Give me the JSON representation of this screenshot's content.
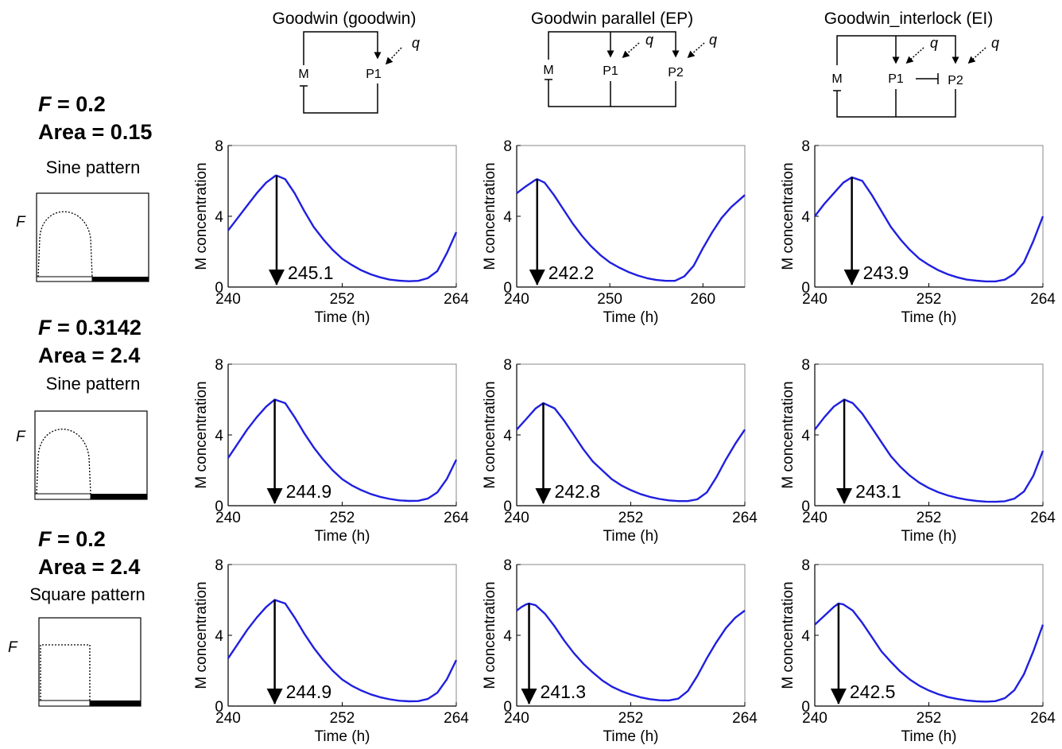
{
  "models": [
    {
      "title": "Goodwin (goodwin)",
      "nodes": [
        "M",
        "P1"
      ],
      "q": "q"
    },
    {
      "title": "Goodwin parallel (EP)",
      "nodes": [
        "M",
        "P1",
        "P2"
      ],
      "q": "q"
    },
    {
      "title": "Goodwin_interlock (EI)",
      "nodes": [
        "M",
        "P1",
        "P2"
      ],
      "q": "q"
    }
  ],
  "conditions": [
    {
      "f_label": "F",
      "f_eq": " = 0.2",
      "area": "Area = 0.15",
      "pattern": "Sine pattern",
      "input_shape": "sine"
    },
    {
      "f_label": "F",
      "f_eq": " = 0.3142",
      "area": "Area = 2.4",
      "pattern": "Sine pattern",
      "input_shape": "sine"
    },
    {
      "f_label": "F",
      "f_eq": " = 0.2",
      "area": "Area = 2.4",
      "pattern": "Square pattern",
      "input_shape": "square"
    }
  ],
  "input_axis_label": "F",
  "colors": {
    "curve": "#1f1fe0",
    "axis": "#000000",
    "frame": "#888888"
  },
  "chart_data": [
    {
      "type": "line",
      "row": 0,
      "col": 0,
      "xlim": [
        240,
        264
      ],
      "ylim": [
        0,
        8
      ],
      "xticks": [
        "240",
        "252",
        "264"
      ],
      "yticks": [
        "0",
        "4",
        "8"
      ],
      "xlabel": "Time (h)",
      "ylabel": "M concentration",
      "peak_label": "245.1",
      "peak": {
        "x": 245.1,
        "y": 6.3
      },
      "x": [
        240,
        241,
        242,
        243,
        244,
        245,
        245.1,
        246,
        247,
        248,
        249,
        250,
        251,
        252,
        253,
        254,
        255,
        256,
        257,
        258,
        259,
        260,
        261,
        262,
        263,
        264
      ],
      "y": [
        3.2,
        3.9,
        4.6,
        5.3,
        5.9,
        6.3,
        6.3,
        6.1,
        5.3,
        4.3,
        3.4,
        2.7,
        2.1,
        1.6,
        1.25,
        0.95,
        0.72,
        0.55,
        0.42,
        0.36,
        0.33,
        0.35,
        0.5,
        0.9,
        1.9,
        3.1
      ]
    },
    {
      "type": "line",
      "row": 0,
      "col": 1,
      "xlim": [
        240,
        264.5
      ],
      "ylim": [
        0,
        8
      ],
      "xticks": [
        "240",
        "250",
        "260"
      ],
      "yticks": [
        "0",
        "4",
        "8"
      ],
      "xlabel": "Time (h)",
      "ylabel": "M concentration",
      "peak_label": "242.2",
      "peak": {
        "x": 242.2,
        "y": 6.1
      },
      "x": [
        240,
        241,
        242,
        242.2,
        243,
        244,
        245,
        246,
        247,
        248,
        249,
        250,
        251,
        252,
        253,
        254,
        255,
        256,
        257,
        258,
        259,
        260,
        261,
        262,
        263,
        264.5
      ],
      "y": [
        5.3,
        5.7,
        6.05,
        6.1,
        5.9,
        5.2,
        4.4,
        3.6,
        2.9,
        2.3,
        1.8,
        1.4,
        1.1,
        0.85,
        0.65,
        0.5,
        0.4,
        0.35,
        0.35,
        0.6,
        1.2,
        2.2,
        3.1,
        3.9,
        4.5,
        5.2
      ]
    },
    {
      "type": "line",
      "row": 0,
      "col": 2,
      "xlim": [
        240,
        264
      ],
      "ylim": [
        0,
        8
      ],
      "xticks": [
        "240",
        "252",
        "264"
      ],
      "yticks": [
        "0",
        "4",
        "8"
      ],
      "xlabel": "Time (h)",
      "ylabel": "M concentration",
      "peak_label": "243.9",
      "peak": {
        "x": 243.9,
        "y": 6.2
      },
      "x": [
        240,
        241,
        242,
        243,
        243.9,
        245,
        246,
        247,
        248,
        249,
        250,
        251,
        252,
        253,
        254,
        255,
        256,
        257,
        258,
        259,
        260,
        261,
        262,
        263,
        264
      ],
      "y": [
        4.0,
        4.7,
        5.3,
        5.9,
        6.2,
        6.0,
        5.2,
        4.3,
        3.4,
        2.7,
        2.1,
        1.6,
        1.25,
        0.95,
        0.72,
        0.55,
        0.42,
        0.36,
        0.32,
        0.32,
        0.42,
        0.75,
        1.4,
        2.6,
        4.0
      ]
    },
    {
      "type": "line",
      "row": 1,
      "col": 0,
      "xlim": [
        240,
        264
      ],
      "ylim": [
        0,
        8
      ],
      "xticks": [
        "240",
        "252",
        "264"
      ],
      "yticks": [
        "0",
        "4",
        "8"
      ],
      "xlabel": "Time (h)",
      "ylabel": "M concentration",
      "peak_label": "244.9",
      "peak": {
        "x": 244.9,
        "y": 6.0
      },
      "x": [
        240,
        241,
        242,
        243,
        244,
        244.9,
        246,
        247,
        248,
        249,
        250,
        251,
        252,
        253,
        254,
        255,
        256,
        257,
        258,
        259,
        260,
        261,
        262,
        263,
        264
      ],
      "y": [
        2.7,
        3.5,
        4.3,
        5.0,
        5.6,
        6.0,
        5.8,
        5.0,
        4.1,
        3.3,
        2.6,
        2.0,
        1.5,
        1.15,
        0.88,
        0.66,
        0.5,
        0.38,
        0.3,
        0.27,
        0.28,
        0.4,
        0.75,
        1.5,
        2.6
      ]
    },
    {
      "type": "line",
      "row": 1,
      "col": 1,
      "xlim": [
        240,
        264
      ],
      "ylim": [
        0,
        8
      ],
      "xticks": [
        "240",
        "252",
        "264"
      ],
      "yticks": [
        "0",
        "4",
        "8"
      ],
      "xlabel": "Time (h)",
      "ylabel": "M concentration",
      "peak_label": "242.8",
      "peak": {
        "x": 242.8,
        "y": 5.8
      },
      "x": [
        240,
        241,
        242,
        242.8,
        244,
        245,
        246,
        247,
        248,
        249,
        250,
        251,
        252,
        253,
        254,
        255,
        256,
        257,
        258,
        259,
        260,
        261,
        262,
        263,
        264
      ],
      "y": [
        4.3,
        4.9,
        5.5,
        5.8,
        5.5,
        4.8,
        4.0,
        3.2,
        2.5,
        2.0,
        1.5,
        1.15,
        0.88,
        0.66,
        0.5,
        0.38,
        0.3,
        0.26,
        0.26,
        0.36,
        0.75,
        1.6,
        2.6,
        3.5,
        4.3
      ]
    },
    {
      "type": "line",
      "row": 1,
      "col": 2,
      "xlim": [
        240,
        264
      ],
      "ylim": [
        0,
        8
      ],
      "xticks": [
        "240",
        "252",
        "264"
      ],
      "yticks": [
        "0",
        "4",
        "8"
      ],
      "xlabel": "Time (h)",
      "ylabel": "M concentration",
      "peak_label": "243.1",
      "peak": {
        "x": 243.1,
        "y": 6.0
      },
      "x": [
        240,
        241,
        242,
        243.1,
        244,
        245,
        246,
        247,
        248,
        249,
        250,
        251,
        252,
        253,
        254,
        255,
        256,
        257,
        258,
        259,
        260,
        261,
        262,
        263,
        264
      ],
      "y": [
        4.3,
        5.0,
        5.6,
        6.0,
        5.8,
        5.2,
        4.4,
        3.6,
        2.8,
        2.2,
        1.7,
        1.3,
        1.0,
        0.76,
        0.58,
        0.44,
        0.34,
        0.27,
        0.23,
        0.22,
        0.25,
        0.4,
        0.8,
        1.7,
        3.1
      ]
    },
    {
      "type": "line",
      "row": 2,
      "col": 0,
      "xlim": [
        240,
        264
      ],
      "ylim": [
        0,
        8
      ],
      "xticks": [
        "240",
        "252",
        "264"
      ],
      "yticks": [
        "0",
        "4",
        "8"
      ],
      "xlabel": "Time (h)",
      "ylabel": "M concentration",
      "peak_label": "244.9",
      "peak": {
        "x": 244.9,
        "y": 6.0
      },
      "x": [
        240,
        241,
        242,
        243,
        244,
        244.9,
        246,
        247,
        248,
        249,
        250,
        251,
        252,
        253,
        254,
        255,
        256,
        257,
        258,
        259,
        260,
        261,
        262,
        263,
        264
      ],
      "y": [
        2.7,
        3.5,
        4.3,
        5.0,
        5.6,
        6.0,
        5.8,
        5.0,
        4.1,
        3.3,
        2.6,
        2.0,
        1.5,
        1.15,
        0.88,
        0.66,
        0.5,
        0.38,
        0.3,
        0.27,
        0.28,
        0.4,
        0.75,
        1.5,
        2.6
      ]
    },
    {
      "type": "line",
      "row": 2,
      "col": 1,
      "xlim": [
        240,
        264
      ],
      "ylim": [
        0,
        8
      ],
      "xticks": [
        "240",
        "252",
        "264"
      ],
      "yticks": [
        "0",
        "4",
        "8"
      ],
      "xlabel": "Time (h)",
      "ylabel": "M concentration",
      "peak_label": "241.3",
      "peak": {
        "x": 241.3,
        "y": 5.8
      },
      "x": [
        240,
        240.5,
        241,
        241.3,
        242,
        243,
        244,
        245,
        246,
        247,
        248,
        249,
        250,
        251,
        252,
        253,
        254,
        255,
        256,
        257,
        258,
        259,
        260,
        261,
        262,
        263,
        264
      ],
      "y": [
        5.4,
        5.6,
        5.75,
        5.8,
        5.7,
        5.2,
        4.5,
        3.7,
        3.0,
        2.4,
        1.9,
        1.45,
        1.1,
        0.85,
        0.65,
        0.5,
        0.39,
        0.33,
        0.32,
        0.42,
        0.85,
        1.7,
        2.7,
        3.6,
        4.4,
        5.0,
        5.4
      ]
    },
    {
      "type": "line",
      "row": 2,
      "col": 2,
      "xlim": [
        240,
        264
      ],
      "ylim": [
        0,
        8
      ],
      "xticks": [
        "240",
        "252",
        "264"
      ],
      "yticks": [
        "0",
        "4",
        "8"
      ],
      "xlabel": "Time (h)",
      "ylabel": "M concentration",
      "peak_label": "242.5",
      "peak": {
        "x": 242.5,
        "y": 5.8
      },
      "x": [
        240,
        241,
        242,
        242.5,
        243,
        244,
        245,
        246,
        247,
        248,
        249,
        250,
        251,
        252,
        253,
        254,
        255,
        256,
        257,
        258,
        259,
        260,
        261,
        262,
        263,
        264
      ],
      "y": [
        4.6,
        5.1,
        5.6,
        5.8,
        5.75,
        5.4,
        4.7,
        3.9,
        3.1,
        2.5,
        1.95,
        1.5,
        1.15,
        0.88,
        0.67,
        0.51,
        0.4,
        0.32,
        0.27,
        0.25,
        0.28,
        0.45,
        0.9,
        1.8,
        3.1,
        4.6
      ]
    }
  ]
}
